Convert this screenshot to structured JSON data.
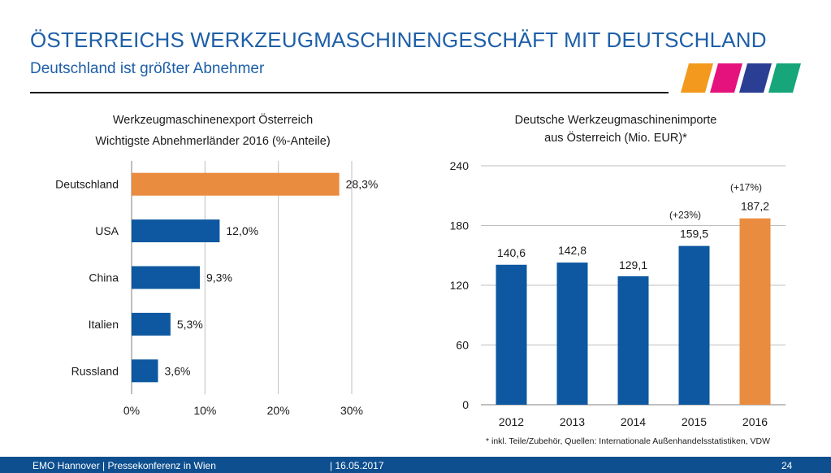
{
  "header": {
    "title": "ÖSTERREICHS WERKZEUGMASCHINENGESCHÄFT MIT DEUTSCHLAND",
    "subtitle": "Deutschland ist größter Abnehmer"
  },
  "logo": {
    "colors": [
      "#f39a1e",
      "#e5127d",
      "#2a3f93",
      "#17a57a"
    ]
  },
  "chart_data": [
    {
      "type": "bar",
      "orientation": "horizontal",
      "title": "Werkzeugmaschinenexport Österreich",
      "subtitle": "Wichtigste Abnehmerländer 2016 (%-Anteile)",
      "categories": [
        "Deutschland",
        "USA",
        "China",
        "Italien",
        "Russland"
      ],
      "values": [
        28.3,
        12.0,
        9.3,
        5.3,
        3.6
      ],
      "value_labels": [
        "28,3%",
        "12,0%",
        "9,3%",
        "5,3%",
        "3,6%"
      ],
      "xlim": [
        0,
        30
      ],
      "xticks": [
        0,
        10,
        20,
        30
      ],
      "xtick_labels": [
        "0%",
        "10%",
        "20%",
        "30%"
      ],
      "grid": true,
      "highlight_index": 0,
      "colors": {
        "bar": "#0d58a0",
        "highlight": "#e98c3f"
      }
    },
    {
      "type": "bar",
      "title": "Deutsche Werkzeugmaschinenimporte",
      "subtitle": "aus Österreich (Mio. EUR)*",
      "categories": [
        "2012",
        "2013",
        "2014",
        "2015",
        "2016"
      ],
      "values": [
        140.6,
        142.8,
        129.1,
        159.5,
        187.2
      ],
      "value_labels": [
        "140,6",
        "142,8",
        "129,1",
        "159,5",
        "187,2"
      ],
      "annotations": [
        "",
        "",
        "",
        "(+23%)",
        "(+17%)"
      ],
      "ylim": [
        0,
        240
      ],
      "yticks": [
        0,
        60,
        120,
        180,
        240
      ],
      "grid": true,
      "highlight_index": 4,
      "colors": {
        "bar": "#0d58a0",
        "highlight": "#e98c3f"
      }
    }
  ],
  "footnote": "* inkl. Teile/Zubehör, Quellen: Internationale Außenhandelsstatistiken, VDW",
  "footer": {
    "left": "EMO Hannover | Pressekonferenz in Wien",
    "date": "| 16.05.2017",
    "page": "24"
  }
}
